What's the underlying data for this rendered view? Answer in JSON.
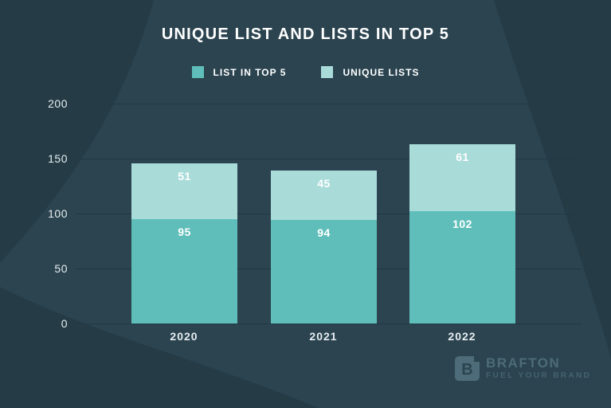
{
  "title": "UNIQUE LIST AND LISTS IN TOP 5",
  "legend": {
    "items": [
      {
        "label": "LIST IN TOP 5",
        "color": "#5fbeb9"
      },
      {
        "label": "UNIQUE LISTS",
        "color": "#a9dcd9"
      }
    ]
  },
  "chart_data": {
    "type": "bar",
    "stacked": true,
    "title": "UNIQUE LIST AND LISTS IN TOP 5",
    "categories": [
      "2020",
      "2021",
      "2022"
    ],
    "series": [
      {
        "name": "LIST IN TOP 5",
        "color": "#5fbeb9",
        "values": [
          95,
          94,
          102
        ]
      },
      {
        "name": "UNIQUE LISTS",
        "color": "#a9dcd9",
        "values": [
          51,
          45,
          61
        ]
      }
    ],
    "totals": [
      146,
      139,
      163
    ],
    "xlabel": "",
    "ylabel": "",
    "ylim": [
      0,
      200
    ],
    "yticks": [
      0,
      50,
      100,
      150,
      200
    ],
    "grid": true,
    "legend_position": "top",
    "value_labels": true
  },
  "branding": {
    "icon_letter": "B",
    "name": "BRAFTON",
    "tagline": "FUEL YOUR BRAND"
  },
  "colors": {
    "background": "#2b4450",
    "blob": "#253c47",
    "gridline": "#223744",
    "title_text": "#ffffff",
    "tick_text": "#e6edf0",
    "value_text": "#ffffff",
    "series1": "#5fbeb9",
    "series2": "#a9dcd9",
    "brand": "#4d6b78"
  }
}
